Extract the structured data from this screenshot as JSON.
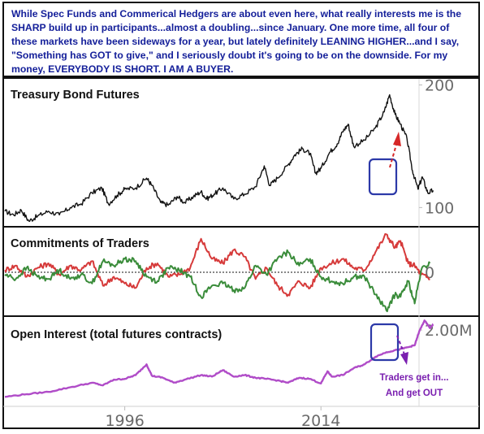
{
  "banner": {
    "text": "While Spec Funds and Commerical Hedgers are about even here, what really interests me is the SHARP build up in participants...almost a doubling...since January. One more time, all four of these markets have been sideways for a year, but lately definitely LEANING HIGHER...and I say, \"Something has GOT to give,\" and I seriously doubt it's going to be on the downside. For my money, EVERYBODY IS SHORT. I AM A BUYER.",
    "color": "#15209a"
  },
  "chart_data": [
    {
      "type": "line",
      "title": "Treasury Bond Futures",
      "x_range": [
        1985,
        2023
      ],
      "ylim": [
        85,
        205
      ],
      "yticks": [
        {
          "value": 200,
          "label": "200"
        },
        {
          "value": 100,
          "label": "100"
        }
      ],
      "series": [
        {
          "color": "#111111",
          "points": [
            [
              1985.0,
              97
            ],
            [
              1985.8,
              94
            ],
            [
              1986.5,
              98
            ],
            [
              1987.2,
              89
            ],
            [
              1988.0,
              93
            ],
            [
              1989.0,
              97
            ],
            [
              1990.0,
              94
            ],
            [
              1991.0,
              100
            ],
            [
              1992.0,
              103
            ],
            [
              1993.0,
              112
            ],
            [
              1993.9,
              116
            ],
            [
              1994.5,
              103
            ],
            [
              1995.3,
              110
            ],
            [
              1996.0,
              115
            ],
            [
              1997.0,
              116
            ],
            [
              1998.0,
              124
            ],
            [
              1998.5,
              118
            ],
            [
              1999.3,
              104
            ],
            [
              2000.0,
              102
            ],
            [
              2000.8,
              109
            ],
            [
              2001.5,
              104
            ],
            [
              2002.3,
              109
            ],
            [
              2003.0,
              113
            ],
            [
              2003.5,
              107
            ],
            [
              2004.2,
              111
            ],
            [
              2005.0,
              116
            ],
            [
              2006.0,
              107
            ],
            [
              2007.0,
              111
            ],
            [
              2008.0,
              117
            ],
            [
              2008.8,
              134
            ],
            [
              2009.3,
              118
            ],
            [
              2010.0,
              124
            ],
            [
              2011.0,
              135
            ],
            [
              2011.6,
              143
            ],
            [
              2012.3,
              148
            ],
            [
              2013.0,
              144
            ],
            [
              2013.5,
              128
            ],
            [
              2014.0,
              132
            ],
            [
              2014.8,
              145
            ],
            [
              2015.5,
              152
            ],
            [
              2016.0,
              162
            ],
            [
              2016.5,
              168
            ],
            [
              2017.0,
              150
            ],
            [
              2018.0,
              155
            ],
            [
              2019.0,
              165
            ],
            [
              2019.8,
              178
            ],
            [
              2020.3,
              192
            ],
            [
              2020.8,
              176
            ],
            [
              2021.3,
              168
            ],
            [
              2021.9,
              156
            ],
            [
              2022.4,
              130
            ],
            [
              2022.9,
              115
            ],
            [
              2023.3,
              125
            ],
            [
              2023.8,
              112
            ],
            [
              2024.3,
              114
            ]
          ]
        }
      ]
    },
    {
      "type": "line",
      "title": "Commitments of Traders",
      "x_range": [
        1985,
        2023
      ],
      "ylim": [
        -1,
        1
      ],
      "yticks": [
        {
          "value": 0,
          "label": "0"
        }
      ],
      "zero_line": "dotted",
      "series": [
        {
          "color": "#d63a3a",
          "points": [
            [
              1985.0,
              0.05
            ],
            [
              1986.0,
              0.15
            ],
            [
              1987.0,
              -0.1
            ],
            [
              1988.0,
              0.1
            ],
            [
              1989.0,
              0.2
            ],
            [
              1990.0,
              -0.05
            ],
            [
              1991.0,
              0.15
            ],
            [
              1992.0,
              0.05
            ],
            [
              1993.0,
              0.25
            ],
            [
              1994.0,
              -0.3
            ],
            [
              1995.0,
              -0.1
            ],
            [
              1996.0,
              -0.25
            ],
            [
              1997.0,
              -0.35
            ],
            [
              1998.0,
              0.1
            ],
            [
              1999.0,
              0.2
            ],
            [
              2000.0,
              -0.1
            ],
            [
              2001.0,
              -0.05
            ],
            [
              2002.0,
              0.1
            ],
            [
              2003.0,
              0.75
            ],
            [
              2004.0,
              0.3
            ],
            [
              2005.0,
              0.2
            ],
            [
              2006.0,
              0.5
            ],
            [
              2007.0,
              0.35
            ],
            [
              2008.0,
              -0.15
            ],
            [
              2009.0,
              0.1
            ],
            [
              2010.0,
              -0.3
            ],
            [
              2011.0,
              -0.5
            ],
            [
              2012.0,
              -0.2
            ],
            [
              2013.0,
              -0.35
            ],
            [
              2014.0,
              0.1
            ],
            [
              2015.0,
              0.2
            ],
            [
              2016.0,
              0.3
            ],
            [
              2017.0,
              0.1
            ],
            [
              2018.0,
              0.05
            ],
            [
              2019.0,
              0.45
            ],
            [
              2020.0,
              0.85
            ],
            [
              2020.8,
              0.55
            ],
            [
              2021.3,
              0.7
            ],
            [
              2022.0,
              0.2
            ],
            [
              2022.6,
              0.15
            ],
            [
              2023.2,
              -0.05
            ],
            [
              2024.0,
              -0.15
            ]
          ]
        },
        {
          "color": "#3a8c3a",
          "points": [
            [
              1985.0,
              -0.05
            ],
            [
              1986.0,
              -0.15
            ],
            [
              1987.0,
              0.1
            ],
            [
              1988.0,
              -0.1
            ],
            [
              1989.0,
              -0.15
            ],
            [
              1990.0,
              0.05
            ],
            [
              1991.0,
              -0.15
            ],
            [
              1992.0,
              -0.05
            ],
            [
              1993.0,
              -0.25
            ],
            [
              1994.0,
              0.25
            ],
            [
              1995.0,
              0.15
            ],
            [
              1996.0,
              0.3
            ],
            [
              1997.0,
              0.25
            ],
            [
              1998.0,
              -0.1
            ],
            [
              1999.0,
              -0.2
            ],
            [
              2000.0,
              0.1
            ],
            [
              2001.0,
              0.05
            ],
            [
              2002.0,
              -0.1
            ],
            [
              2003.0,
              -0.55
            ],
            [
              2004.0,
              -0.3
            ],
            [
              2005.0,
              -0.25
            ],
            [
              2006.0,
              -0.4
            ],
            [
              2007.0,
              -0.35
            ],
            [
              2008.0,
              0.15
            ],
            [
              2009.0,
              -0.05
            ],
            [
              2010.0,
              0.3
            ],
            [
              2011.0,
              0.45
            ],
            [
              2012.0,
              0.15
            ],
            [
              2013.0,
              0.3
            ],
            [
              2014.0,
              -0.1
            ],
            [
              2015.0,
              -0.2
            ],
            [
              2016.0,
              -0.25
            ],
            [
              2017.0,
              -0.1
            ],
            [
              2018.0,
              -0.1
            ],
            [
              2019.0,
              -0.5
            ],
            [
              2020.0,
              -0.85
            ],
            [
              2020.8,
              -0.5
            ],
            [
              2021.3,
              -0.55
            ],
            [
              2022.0,
              -0.2
            ],
            [
              2022.6,
              -0.7
            ],
            [
              2023.2,
              0.05
            ],
            [
              2024.0,
              0.2
            ]
          ]
        }
      ]
    },
    {
      "type": "line",
      "title": "Open Interest (total futures contracts)",
      "x_range": [
        1985,
        2023
      ],
      "ylim": [
        0,
        2.3
      ],
      "yticks": [
        {
          "value": 2.0,
          "label": "2.00M"
        }
      ],
      "xticks": [
        {
          "value": 1996,
          "label": "1996"
        },
        {
          "value": 2014,
          "label": "2014"
        }
      ],
      "series": [
        {
          "color": "#b04cc8",
          "points": [
            [
              1985.0,
              0.25
            ],
            [
              1987.0,
              0.32
            ],
            [
              1989.0,
              0.38
            ],
            [
              1991.0,
              0.5
            ],
            [
              1993.0,
              0.62
            ],
            [
              1994.0,
              0.55
            ],
            [
              1995.0,
              0.7
            ],
            [
              1996.0,
              0.72
            ],
            [
              1997.0,
              0.82
            ],
            [
              1998.0,
              1.1
            ],
            [
              1998.5,
              0.8
            ],
            [
              1999.5,
              0.75
            ],
            [
              2000.5,
              0.62
            ],
            [
              2001.5,
              0.7
            ],
            [
              2003.0,
              0.82
            ],
            [
              2004.0,
              0.78
            ],
            [
              2005.0,
              0.95
            ],
            [
              2006.0,
              0.78
            ],
            [
              2007.0,
              0.82
            ],
            [
              2008.0,
              0.75
            ],
            [
              2009.0,
              0.72
            ],
            [
              2010.0,
              0.68
            ],
            [
              2011.0,
              0.62
            ],
            [
              2012.0,
              0.75
            ],
            [
              2013.0,
              0.72
            ],
            [
              2014.0,
              0.6
            ],
            [
              2014.6,
              0.92
            ],
            [
              2015.0,
              0.78
            ],
            [
              2016.0,
              0.82
            ],
            [
              2017.0,
              1.0
            ],
            [
              2018.0,
              1.1
            ],
            [
              2019.0,
              1.3
            ],
            [
              2020.0,
              1.42
            ],
            [
              2021.0,
              1.48
            ],
            [
              2022.0,
              1.55
            ],
            [
              2022.6,
              1.6
            ],
            [
              2023.0,
              1.95
            ],
            [
              2023.5,
              2.25
            ],
            [
              2024.0,
              2.05
            ],
            [
              2024.3,
              2.15
            ]
          ]
        }
      ],
      "annotation": {
        "text_line1": "Traders get in...",
        "text_line2": "And get OUT",
        "color": "#7a1fb0"
      }
    }
  ],
  "highlights": {
    "box_color": "#2c39a8",
    "up_arrow_color": "#d62828",
    "down_arrow_color": "#7a1fb0"
  },
  "theme": {
    "axis_text_color": "#6a6a6a",
    "title_color": "#111111"
  }
}
